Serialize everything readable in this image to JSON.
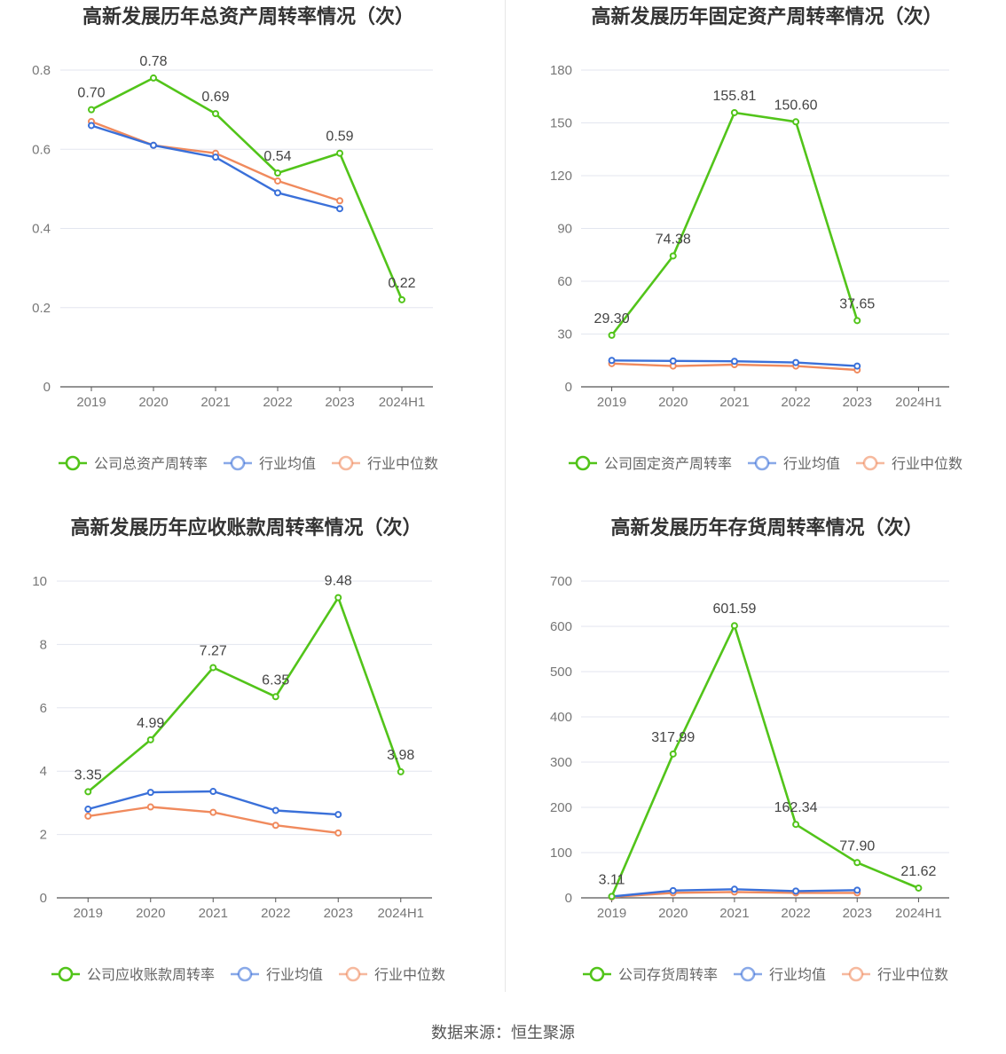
{
  "source_text": "数据来源：恒生聚源",
  "chart_data": [
    {
      "type": "line",
      "title": "高新发展历年总资产周转率情况（次）",
      "categories": [
        "2019",
        "2020",
        "2021",
        "2022",
        "2023",
        "2024H1"
      ],
      "ylim": [
        0,
        0.8
      ],
      "yticks": [
        0,
        0.2,
        0.4,
        0.6,
        0.8
      ],
      "ytick_labels": [
        "0",
        "0.2",
        "0.4",
        "0.6",
        "0.8"
      ],
      "grid": true,
      "legend_position": "bottom",
      "series": [
        {
          "name": "公司总资产周转率",
          "color": "#52c41a",
          "values": [
            0.7,
            0.78,
            0.69,
            0.54,
            0.59,
            0.22
          ],
          "labels": [
            "0.70",
            "0.78",
            "0.69",
            "0.54",
            "0.59",
            "0.22"
          ]
        },
        {
          "name": "行业均值",
          "color": "#3a70d9",
          "values": [
            0.66,
            0.61,
            0.58,
            0.49,
            0.45,
            null
          ]
        },
        {
          "name": "行业中位数",
          "color": "#f08a5d",
          "values": [
            0.67,
            0.61,
            0.59,
            0.52,
            0.47,
            null
          ]
        }
      ]
    },
    {
      "type": "line",
      "title": "高新发展历年固定资产周转率情况（次）",
      "categories": [
        "2019",
        "2020",
        "2021",
        "2022",
        "2023",
        "2024H1"
      ],
      "ylim": [
        0,
        180
      ],
      "yticks": [
        0,
        30,
        60,
        90,
        120,
        150,
        180
      ],
      "ytick_labels": [
        "0",
        "30",
        "60",
        "90",
        "120",
        "150",
        "180"
      ],
      "grid": true,
      "legend_position": "bottom",
      "series": [
        {
          "name": "公司固定资产周转率",
          "color": "#52c41a",
          "values": [
            29.3,
            74.38,
            155.81,
            150.6,
            37.65,
            null
          ],
          "labels": [
            "29.30",
            "74.38",
            "155.81",
            "150.60",
            "37.65",
            ""
          ]
        },
        {
          "name": "行业均值",
          "color": "#3a70d9",
          "values": [
            15.0,
            14.7,
            14.5,
            13.8,
            11.8,
            null
          ]
        },
        {
          "name": "行业中位数",
          "color": "#f08a5d",
          "values": [
            13.2,
            11.8,
            12.6,
            11.8,
            9.6,
            null
          ]
        }
      ]
    },
    {
      "type": "line",
      "title": "高新发展历年应收账款周转率情况（次）",
      "categories": [
        "2019",
        "2020",
        "2021",
        "2022",
        "2023",
        "2024H1"
      ],
      "ylim": [
        0,
        10
      ],
      "yticks": [
        0,
        2,
        4,
        6,
        8,
        10
      ],
      "ytick_labels": [
        "0",
        "2",
        "4",
        "6",
        "8",
        "10"
      ],
      "grid": true,
      "legend_position": "bottom",
      "series": [
        {
          "name": "公司应收账款周转率",
          "color": "#52c41a",
          "values": [
            3.35,
            4.99,
            7.27,
            6.35,
            9.48,
            3.98
          ],
          "labels": [
            "3.35",
            "4.99",
            "7.27",
            "6.35",
            "9.48",
            "3.98"
          ]
        },
        {
          "name": "行业均值",
          "color": "#3a70d9",
          "values": [
            2.8,
            3.33,
            3.36,
            2.76,
            2.63,
            null
          ]
        },
        {
          "name": "行业中位数",
          "color": "#f08a5d",
          "values": [
            2.58,
            2.87,
            2.7,
            2.29,
            2.05,
            null
          ]
        }
      ]
    },
    {
      "type": "line",
      "title": "高新发展历年存货周转率情况（次）",
      "categories": [
        "2019",
        "2020",
        "2021",
        "2022",
        "2023",
        "2024H1"
      ],
      "ylim": [
        0,
        700
      ],
      "yticks": [
        0,
        100,
        200,
        300,
        400,
        500,
        600,
        700
      ],
      "ytick_labels": [
        "0",
        "100",
        "200",
        "300",
        "400",
        "500",
        "600",
        "700"
      ],
      "grid": true,
      "legend_position": "bottom",
      "series": [
        {
          "name": "公司存货周转率",
          "color": "#52c41a",
          "values": [
            3.11,
            317.99,
            601.59,
            162.34,
            77.9,
            21.62
          ],
          "labels": [
            "3.11",
            "317.99",
            "601.59",
            "162.34",
            "77.90",
            "21.62"
          ]
        },
        {
          "name": "行业均值",
          "color": "#3a70d9",
          "values": [
            3,
            16,
            19,
            15,
            17,
            null
          ]
        },
        {
          "name": "行业中位数",
          "color": "#f08a5d",
          "values": [
            2,
            11,
            13,
            11,
            11,
            null
          ]
        }
      ]
    }
  ]
}
